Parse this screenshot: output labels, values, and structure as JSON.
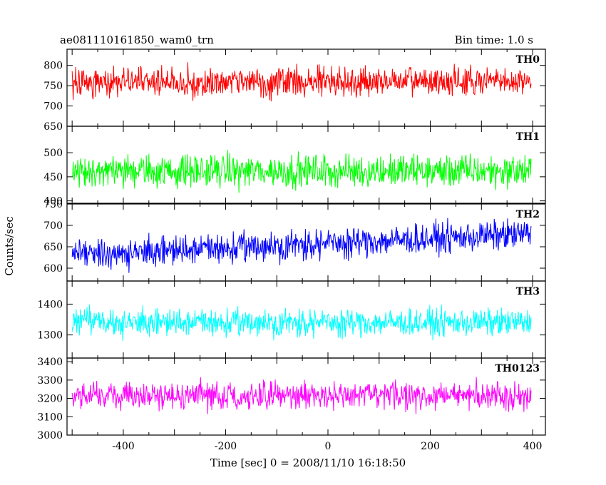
{
  "chart_data": {
    "type": "line",
    "title": "ae081110161850_wam0_trn",
    "bin_time_label": "Bin time: 1.0 s",
    "xlabel": "Time [sec] 0 = 2008/11/10 16:18:50",
    "ylabel": "Counts/sec",
    "xlim": [
      -510,
      425
    ],
    "xticks": [
      -400,
      -200,
      0,
      200,
      400
    ],
    "panels": [
      {
        "name": "TH0",
        "color": "#ff0000",
        "ylim": [
          650,
          840
        ],
        "yticks": [
          650,
          700,
          750,
          800
        ],
        "mean": 760,
        "noise": 40,
        "trend": 0,
        "seed": 11
      },
      {
        "name": "TH1",
        "color": "#00ff00",
        "ylim": [
          395,
          555
        ],
        "yticks": [
          400,
          450,
          500
        ],
        "mean": 462,
        "noise": 37,
        "trend": 0,
        "seed": 23
      },
      {
        "name": "TH2",
        "color": "#0000ff",
        "ylim": [
          570,
          750
        ],
        "yticks": [
          600,
          650,
          700,
          750
        ],
        "mean": 655,
        "noise": 38,
        "trend": 25,
        "seed": 37
      },
      {
        "name": "TH3",
        "color": "#00ffff",
        "ylim": [
          1225,
          1475
        ],
        "yticks": [
          1300,
          1400
        ],
        "mean": 1340,
        "noise": 48,
        "trend": 0,
        "seed": 51
      },
      {
        "name": "TH0123",
        "color": "#ff00ff",
        "ylim": [
          3000,
          3420
        ],
        "yticks": [
          3000,
          3100,
          3200,
          3300,
          3400
        ],
        "mean": 3215,
        "noise": 80,
        "trend": 0,
        "seed": 67
      }
    ],
    "x_start": -500,
    "x_end": 397,
    "x_step": 1
  }
}
